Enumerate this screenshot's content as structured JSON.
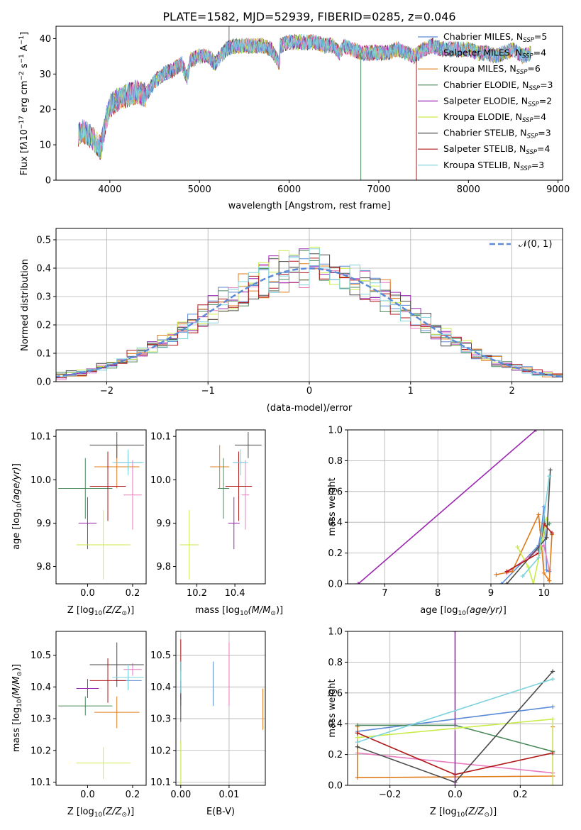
{
  "title": "PLATE=1582, MJD=52939, FIBERID=0285, z=0.046",
  "colors": [
    "#5b8bd6",
    "#e87bc0",
    "#e07b1a",
    "#4c8a5c",
    "#9c27b0",
    "#c9ec4a",
    "#4a4a4a",
    "#b01818",
    "#7dd3dc"
  ],
  "legend_entries": [
    {
      "text": "Chabrier MILES, N",
      "sub": "SSP",
      "suffix": "=5"
    },
    {
      "text": "Salpeter MILES, N",
      "sub": "SSP",
      "suffix": "=4"
    },
    {
      "text": "Kroupa MILES, N",
      "sub": "SSP",
      "suffix": "=6"
    },
    {
      "text": "Chabrier ELODIE, N",
      "sub": "SSP",
      "suffix": "=3"
    },
    {
      "text": "Salpeter ELODIE, N",
      "sub": "SSP",
      "suffix": "=2"
    },
    {
      "text": "Kroupa ELODIE, N",
      "sub": "SSP",
      "suffix": "=4"
    },
    {
      "text": "Chabrier STELIB, N",
      "sub": "SSP",
      "suffix": "=3"
    },
    {
      "text": "Salpeter STELIB, N",
      "sub": "SSP",
      "suffix": "=4"
    },
    {
      "text": "Kroupa STELIB, N",
      "sub": "SSP",
      "suffix": "=3"
    }
  ],
  "chart_data": [
    {
      "type": "line",
      "id": "spectrum",
      "xlabel": "wavelength [Angstrom, rest frame]",
      "ylabel": "Flux [f",
      "xlim": [
        3400,
        9050
      ],
      "ylim": [
        0,
        43.5
      ],
      "xticks": [
        4000,
        5000,
        6000,
        7000,
        8000,
        9000
      ],
      "yticks": [
        0,
        10,
        20,
        30,
        40
      ],
      "spectrum_envelope": {
        "x": [
          3650,
          3700,
          3800,
          3900,
          3950,
          4000,
          4100,
          4200,
          4300,
          4400,
          4500,
          4600,
          4700,
          4800,
          4862,
          4900,
          5000,
          5100,
          5175,
          5300,
          5400,
          5500,
          5600,
          5700,
          5800,
          5890,
          5900,
          6000,
          6100,
          6200,
          6300,
          6400,
          6500,
          6563,
          6600,
          6700,
          6800,
          6900,
          7000,
          7100,
          7200,
          7300,
          7400,
          7500,
          7600,
          7700,
          7800,
          7900,
          8000,
          8100,
          8200,
          8300,
          8400,
          8500,
          8600,
          8700
        ],
        "y": [
          13,
          14,
          12,
          9,
          16,
          21,
          23,
          24,
          25,
          24,
          28,
          30,
          31,
          33,
          29,
          34,
          35,
          35,
          33,
          37,
          38,
          38,
          38,
          38,
          37,
          33,
          38,
          39,
          39,
          39,
          39,
          38,
          38,
          36,
          38,
          37,
          36,
          36,
          36,
          36,
          37,
          36,
          35,
          37,
          38,
          37,
          37,
          37,
          37,
          36,
          36,
          35,
          36,
          37,
          35,
          36
        ]
      },
      "spike_x": [
        6800,
        7420
      ]
    },
    {
      "type": "line",
      "id": "residuals",
      "xlabel": "(data-model)/error",
      "ylabel": "Normed distribution",
      "xlim": [
        -2.5,
        2.5
      ],
      "ylim": [
        0,
        0.54
      ],
      "xticks": [
        -2,
        -1,
        0,
        1,
        2
      ],
      "yticks": [
        0.0,
        0.1,
        0.2,
        0.3,
        0.4,
        0.5
      ],
      "legend": "𝒩(0, 1)",
      "gaussian_mean": 0,
      "gaussian_sigma": 1
    },
    {
      "type": "scatter",
      "id": "age-vs-z",
      "xlabel": "Z [log",
      "ylabel": "age  [log",
      "xlim": [
        -0.14,
        0.26
      ],
      "ylim": [
        9.76,
        10.115
      ],
      "xticks": [
        0.0,
        0.2
      ],
      "yticks": [
        9.8,
        9.9,
        10.0,
        10.1
      ],
      "points": [
        {
          "x": 0.18,
          "y": 10.04,
          "xe": 0.06,
          "ye": 0.02
        },
        {
          "x": 0.2,
          "y": 9.965,
          "xe": 0.04,
          "ye": 0.08
        },
        {
          "x": 0.13,
          "y": 10.03,
          "xe": 0.1,
          "ye": 0.05
        },
        {
          "x": -0.01,
          "y": 9.98,
          "xe": 0.12,
          "ye": 0.07
        },
        {
          "x": 0.0,
          "y": 9.9,
          "xe": 0.04,
          "ye": 0.06
        },
        {
          "x": 0.07,
          "y": 9.85,
          "xe": 0.12,
          "ye": 0.08
        },
        {
          "x": 0.13,
          "y": 10.08,
          "xe": 0.12,
          "ye": 0.03
        },
        {
          "x": 0.09,
          "y": 9.985,
          "xe": 0.08,
          "ye": 0.08
        },
        {
          "x": 0.18,
          "y": 10.04,
          "xe": 0.07,
          "ye": 0.03
        }
      ]
    },
    {
      "type": "scatter",
      "id": "age-vs-mass",
      "xlabel": "mass [log",
      "ylabel": "",
      "xlim": [
        10.09,
        10.56
      ],
      "ylim": [
        9.76,
        10.115
      ],
      "xticks": [
        10.2,
        10.4
      ],
      "yticks": [
        9.8,
        9.9,
        10.0,
        10.1
      ],
      "points": [
        {
          "x": 10.42,
          "y": 10.04,
          "xe": 0.03,
          "ye": 0.02
        },
        {
          "x": 10.455,
          "y": 9.965,
          "xe": 0.02,
          "ye": 0.08
        },
        {
          "x": 10.32,
          "y": 10.03,
          "xe": 0.05,
          "ye": 0.05
        },
        {
          "x": 10.34,
          "y": 9.98,
          "xe": 0.03,
          "ye": 0.07
        },
        {
          "x": 10.395,
          "y": 9.9,
          "xe": 0.03,
          "ye": 0.06
        },
        {
          "x": 10.16,
          "y": 9.85,
          "xe": 0.05,
          "ye": 0.08
        },
        {
          "x": 10.47,
          "y": 10.08,
          "xe": 0.07,
          "ye": 0.03
        },
        {
          "x": 10.42,
          "y": 9.985,
          "xe": 0.07,
          "ye": 0.08
        },
        {
          "x": 10.43,
          "y": 10.04,
          "xe": 0.04,
          "ye": 0.03
        }
      ]
    },
    {
      "type": "line",
      "id": "massweight-vs-age",
      "xlabel": "age  [log",
      "ylabel": "mass weight",
      "xlim": [
        6.3,
        10.35
      ],
      "ylim": [
        0,
        1.0
      ],
      "xticks": [
        7,
        8,
        9,
        10
      ],
      "yticks": [
        0.0,
        0.2,
        0.4,
        0.6,
        0.8,
        1.0
      ],
      "series": [
        {
          "x": [
            9.2,
            9.9,
            9.95,
            10.0,
            10.05,
            10.1
          ],
          "y": [
            0.0,
            0.25,
            0.35,
            0.5,
            0.09,
            0.08
          ]
        },
        {
          "x": [
            9.3,
            9.8,
            10.0,
            10.1
          ],
          "y": [
            0.07,
            0.2,
            0.25,
            0.09
          ]
        },
        {
          "x": [
            9.1,
            9.4,
            9.9,
            10.0,
            10.1,
            10.15
          ],
          "y": [
            0.06,
            0.08,
            0.45,
            0.07,
            0.02,
            0.32
          ]
        },
        {
          "x": [
            9.9,
            10.0,
            10.1
          ],
          "y": [
            0.22,
            0.37,
            0.39
          ]
        },
        {
          "x": [
            6.5,
            9.85
          ],
          "y": [
            0.0,
            1.0
          ]
        },
        {
          "x": [
            9.5,
            9.7,
            9.8,
            10.05
          ],
          "y": [
            0.24,
            0.11,
            0.0,
            0.42
          ]
        },
        {
          "x": [
            9.3,
            10.05,
            10.12
          ],
          "y": [
            0.0,
            0.3,
            0.74
          ]
        },
        {
          "x": [
            9.3,
            9.9,
            10.0,
            10.15
          ],
          "y": [
            0.08,
            0.2,
            0.39,
            0.33
          ]
        },
        {
          "x": [
            9.6,
            9.9,
            10.1
          ],
          "y": [
            0.05,
            0.17,
            0.7
          ]
        }
      ]
    },
    {
      "type": "scatter",
      "id": "mass-vs-z",
      "xlabel": "Z [log",
      "ylabel": "mass [log",
      "xlim": [
        -0.14,
        0.26
      ],
      "ylim": [
        10.09,
        10.575
      ],
      "xticks": [
        0.0,
        0.2
      ],
      "yticks": [
        10.1,
        10.2,
        10.3,
        10.4,
        10.5
      ],
      "points": [
        {
          "x": 0.18,
          "y": 10.42,
          "xe": 0.06,
          "ye": 0.03
        },
        {
          "x": 0.2,
          "y": 10.455,
          "xe": 0.04,
          "ye": 0.02
        },
        {
          "x": 0.13,
          "y": 10.32,
          "xe": 0.1,
          "ye": 0.05
        },
        {
          "x": -0.01,
          "y": 10.34,
          "xe": 0.12,
          "ye": 0.03
        },
        {
          "x": 0.0,
          "y": 10.395,
          "xe": 0.05,
          "ye": 0.03
        },
        {
          "x": 0.07,
          "y": 10.16,
          "xe": 0.12,
          "ye": 0.05
        },
        {
          "x": 0.13,
          "y": 10.47,
          "xe": 0.12,
          "ye": 0.07
        },
        {
          "x": 0.09,
          "y": 10.42,
          "xe": 0.08,
          "ye": 0.07
        },
        {
          "x": 0.18,
          "y": 10.43,
          "xe": 0.07,
          "ye": 0.04
        }
      ]
    },
    {
      "type": "scatter",
      "id": "mass-vs-ebv",
      "xlabel": "E(B-V)",
      "ylabel": "",
      "xlim": [
        -0.001,
        0.0175
      ],
      "ylim": [
        10.09,
        10.575
      ],
      "xticks": [
        0.0,
        0.01
      ],
      "yticks": [
        10.1,
        10.2,
        10.3,
        10.4,
        10.5
      ],
      "points": [
        {
          "x": 0.0067,
          "y": 10.41,
          "xe": 0,
          "ye": 0.07
        },
        {
          "x": 0.01,
          "y": 10.44,
          "xe": 0,
          "ye": 0.1
        },
        {
          "x": 0.017,
          "y": 10.33,
          "xe": 0,
          "ye": 0.065
        },
        {
          "x": 0.0,
          "y": 10.41,
          "xe": 0,
          "ye": 0.07
        },
        {
          "x": 0.0,
          "y": 10.39,
          "xe": 0,
          "ye": 0.03
        },
        {
          "x": 0.0,
          "y": 10.16,
          "xe": 0,
          "ye": 0.07
        },
        {
          "x": 0.0,
          "y": 10.34,
          "xe": 0,
          "ye": 0.05
        },
        {
          "x": 0.0,
          "y": 10.5,
          "xe": 0,
          "ye": 0.05
        },
        {
          "x": 0.0,
          "y": 10.43,
          "xe": 0,
          "ye": 0.05
        }
      ]
    },
    {
      "type": "line",
      "id": "massweight-vs-z",
      "xlabel": "Z [log",
      "ylabel": "mass weight",
      "xlim": [
        -0.33,
        0.33
      ],
      "ylim": [
        0,
        1.0
      ],
      "xticks": [
        -0.2,
        0.0,
        0.2
      ],
      "yticks": [
        0.0,
        0.2,
        0.4,
        0.6,
        0.8,
        1.0
      ],
      "series": [
        {
          "x": [
            -0.3,
            0.3
          ],
          "y": [
            0.35,
            0.51
          ]
        },
        {
          "x": [
            -0.3,
            0.3
          ],
          "y": [
            0.21,
            0.08
          ]
        },
        {
          "x": [
            -0.3,
            -0.3,
            0.3,
            0.3
          ],
          "y": [
            0.38,
            0.05,
            0.06,
            0.38
          ]
        },
        {
          "x": [
            -0.3,
            0.0,
            0.3
          ],
          "y": [
            0.39,
            0.39,
            0.22
          ]
        },
        {
          "x": [
            0.0,
            0.0
          ],
          "y": [
            0.0,
            1.0
          ]
        },
        {
          "x": [
            -0.3,
            0.0,
            0.3,
            0.3
          ],
          "y": [
            0.31,
            0.37,
            0.43,
            0.0
          ]
        },
        {
          "x": [
            -0.3,
            0.0,
            0.3
          ],
          "y": [
            0.25,
            0.02,
            0.74
          ]
        },
        {
          "x": [
            -0.3,
            0.0,
            0.3
          ],
          "y": [
            0.34,
            0.07,
            0.21
          ]
        },
        {
          "x": [
            -0.3,
            0.3
          ],
          "y": [
            0.28,
            0.69
          ]
        }
      ]
    }
  ]
}
